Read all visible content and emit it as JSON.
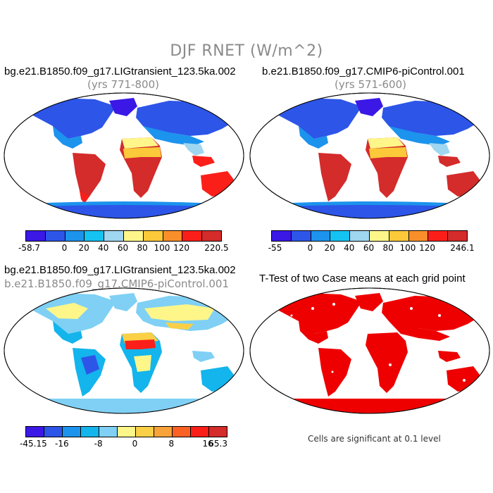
{
  "title": "DJF RNET (W/m^2)",
  "panels": {
    "top_left": {
      "title": "bg.e21.B1850.f09_g17.LIGtransient_123.5ka.002",
      "subtitle": "(yrs 771-800)",
      "colorbar": {
        "colors": [
          "#3b18e6",
          "#2d55e8",
          "#1c93ec",
          "#14c3f2",
          "#9fd6f0",
          "#fff68a",
          "#fbc93a",
          "#f98f2a",
          "#fb1f1a",
          "#d42b2b"
        ],
        "ticks": [
          "-58.7",
          "0",
          "20",
          "40",
          "60",
          "80",
          "100",
          "120",
          "220.5"
        ]
      }
    },
    "top_right": {
      "title": "b.e21.B1850.f09_g17.CMIP6-piControl.001",
      "subtitle": "(yrs 571-600)",
      "colorbar": {
        "colors": [
          "#3b18e6",
          "#2d55e8",
          "#1c93ec",
          "#14c3f2",
          "#9fd6f0",
          "#fff68a",
          "#fbc93a",
          "#f98f2a",
          "#fb1f1a",
          "#d42b2b"
        ],
        "ticks": [
          "-55",
          "0",
          "20",
          "40",
          "60",
          "80",
          "100",
          "120",
          "246.1"
        ]
      }
    },
    "bottom_left": {
      "title": "bg.e21.B1850.f09_g17.LIGtransient_123.5ka.002",
      "subtitle": "b.e21.B1850.f09_g17.CMIP6-piControl.001",
      "colorbar": {
        "colors": [
          "#3b18e6",
          "#2d55e8",
          "#1c93ec",
          "#14b4ec",
          "#7fd0f4",
          "#fff68a",
          "#fbd046",
          "#f8a23a",
          "#f96224",
          "#fb1f1a",
          "#d42b2b"
        ],
        "ticks": [
          "-45.15",
          "-16",
          "-8",
          "0",
          "8",
          "16",
          "65.3"
        ]
      }
    },
    "bottom_right": {
      "title": "T-Test of two Case means at each grid point",
      "note": "Cells are significant at 0.1 level"
    }
  }
}
